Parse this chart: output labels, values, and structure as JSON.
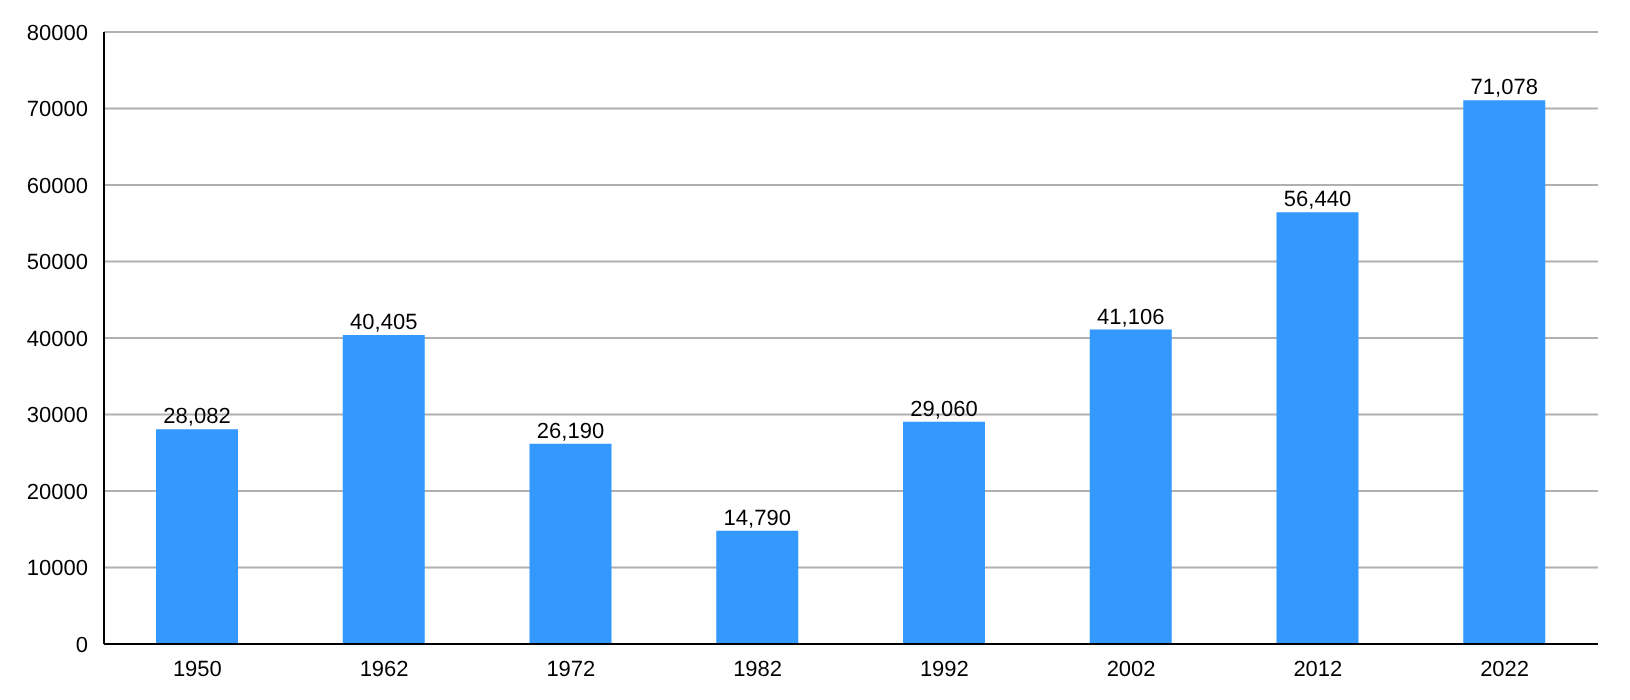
{
  "chart_data": {
    "type": "bar",
    "categories": [
      "1950",
      "1962",
      "1972",
      "1982",
      "1992",
      "2002",
      "2012",
      "2022"
    ],
    "values": [
      28082,
      40405,
      26190,
      14790,
      29060,
      41106,
      56440,
      71078
    ],
    "value_labels": [
      "28,082",
      "40,405",
      "26,190",
      "14,790",
      "29,060",
      "41,106",
      "56,440",
      "71,078"
    ],
    "color": "#3399ff",
    "ylim": [
      0,
      80000
    ],
    "yticks": [
      0,
      10000,
      20000,
      30000,
      40000,
      50000,
      60000,
      70000,
      80000
    ],
    "grid": "y"
  }
}
